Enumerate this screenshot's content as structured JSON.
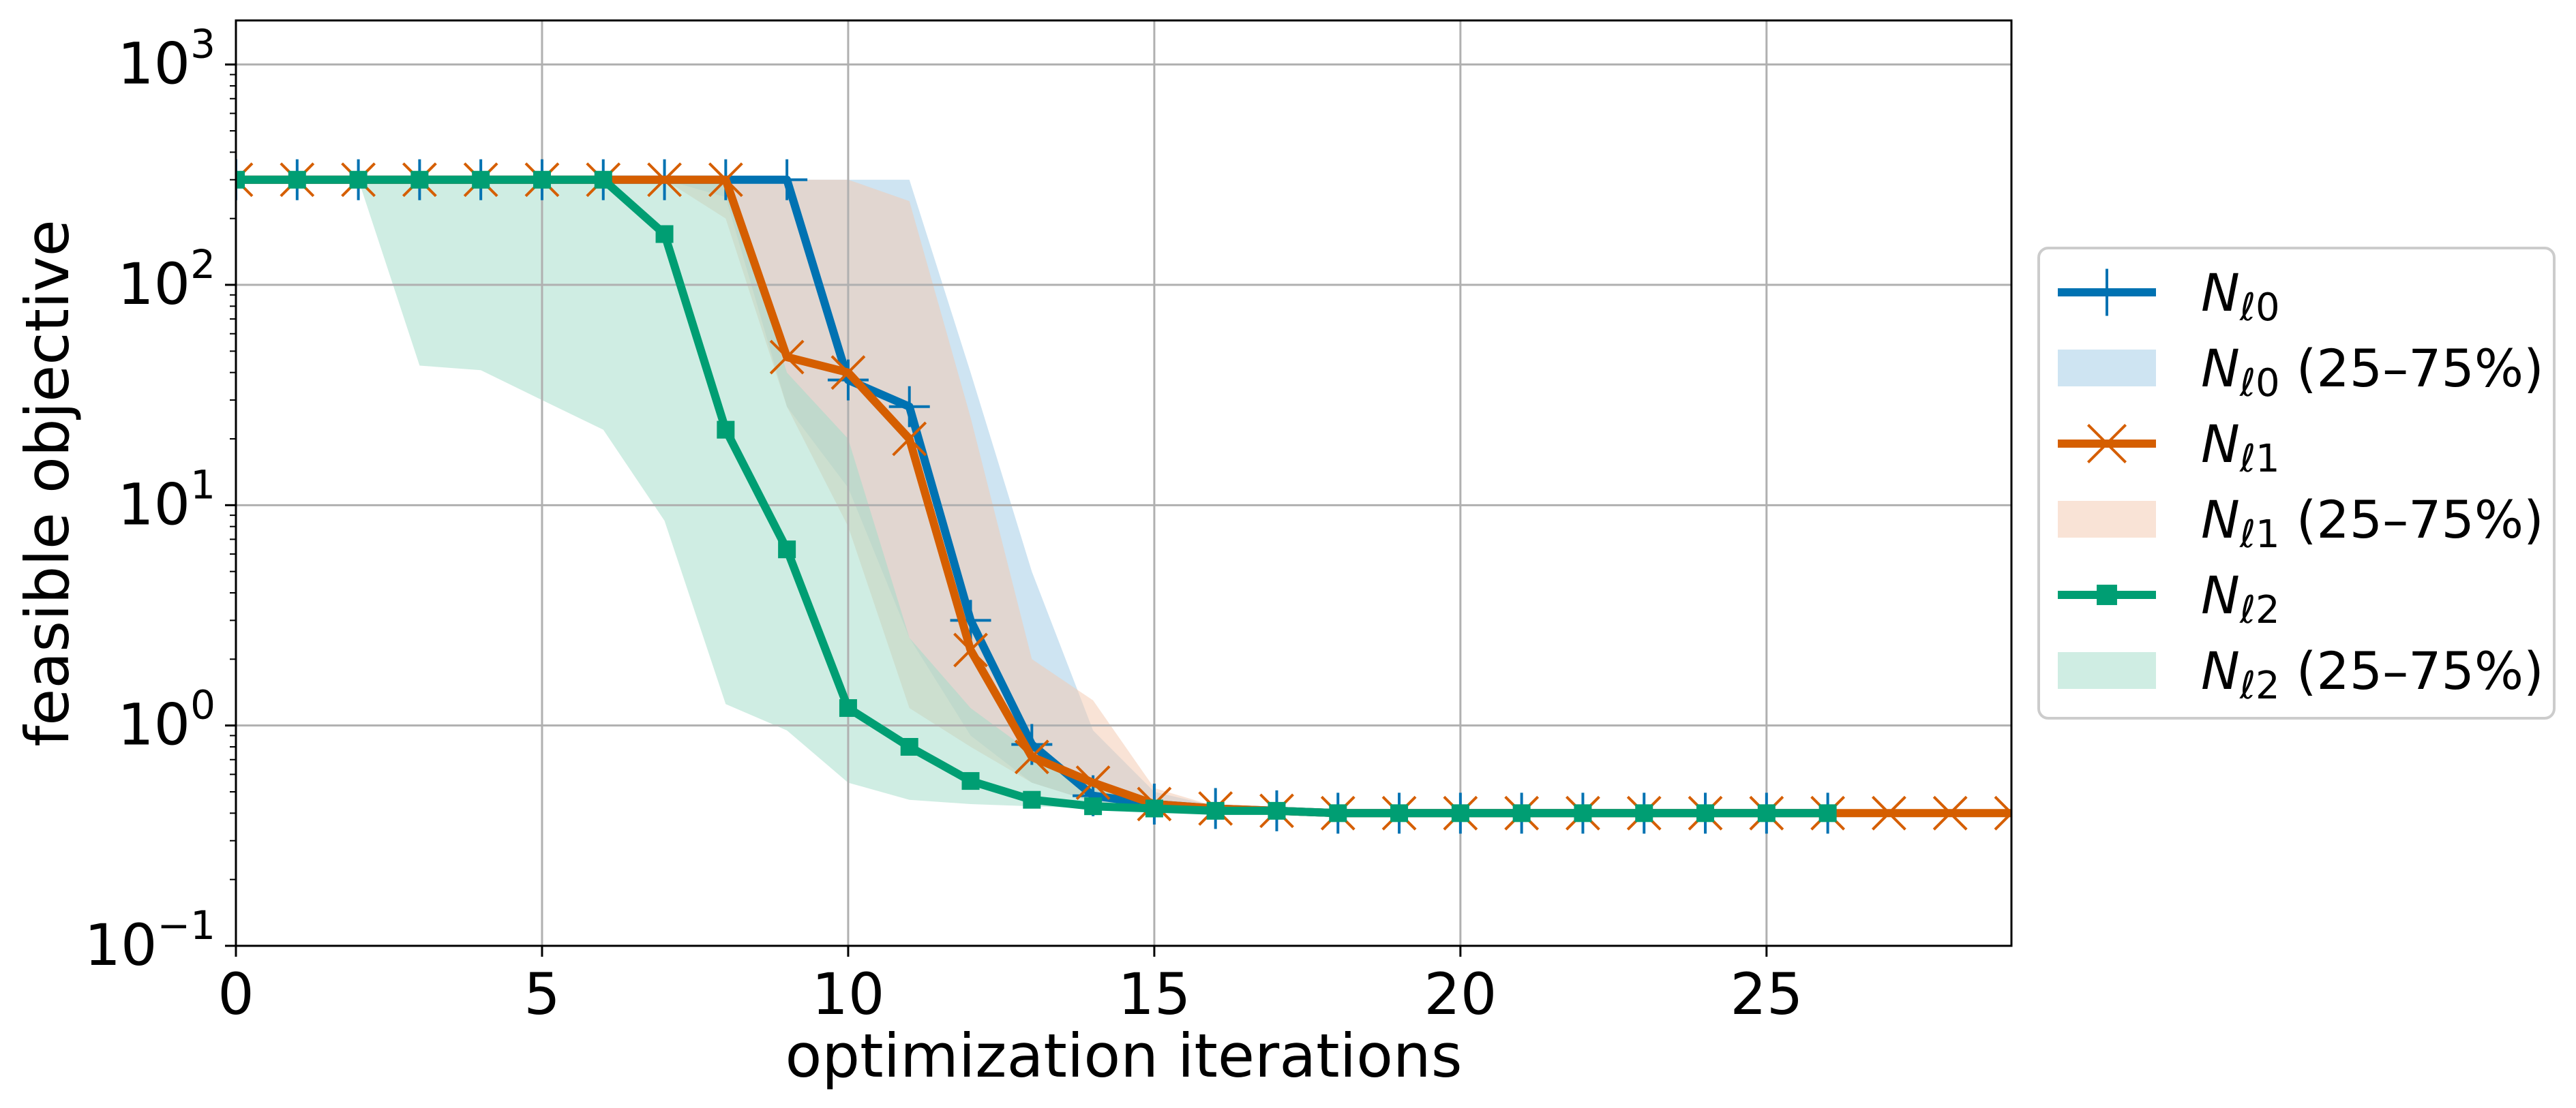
{
  "chart_data": {
    "type": "line",
    "xlabel": "optimization iterations",
    "ylabel": "feasible objective",
    "xlim": [
      0,
      29
    ],
    "ylim": [
      0.1,
      1585
    ],
    "yscale": "log",
    "grid": true,
    "legend_position": "center-right-outside",
    "x_ticks": [
      0,
      5,
      10,
      15,
      20,
      25
    ],
    "x_tick_labels": [
      "0",
      "5",
      "10",
      "15",
      "20",
      "25"
    ],
    "y_ticks": [
      {
        "value": 1000,
        "base": "10",
        "exp": "3"
      },
      {
        "value": 100,
        "base": "10",
        "exp": "2"
      },
      {
        "value": 10,
        "base": "10",
        "exp": "1"
      },
      {
        "value": 1,
        "base": "10",
        "exp": "0"
      },
      {
        "value": 0.1,
        "base": "10",
        "exp": "−1"
      }
    ],
    "series": [
      {
        "name_main": "N",
        "name_sub": "ℓ0",
        "band_suffix": " (25–75%)",
        "color": "#0072B2",
        "band_color": "#9ECAE5",
        "marker": "plus",
        "x": [
          0,
          1,
          2,
          3,
          4,
          5,
          6,
          7,
          8,
          9,
          10,
          11,
          12,
          13,
          14,
          15,
          16,
          17,
          18,
          19,
          20,
          21,
          22,
          23,
          24,
          25,
          26
        ],
        "values": [
          300,
          300,
          300,
          300,
          300,
          300,
          300,
          300,
          300,
          300,
          37,
          28,
          3.0,
          0.82,
          0.48,
          0.44,
          0.42,
          0.41,
          0.4,
          0.4,
          0.4,
          0.4,
          0.4,
          0.4,
          0.4,
          0.4,
          0.4
        ],
        "q25": [
          300,
          300,
          300,
          300,
          300,
          300,
          300,
          300,
          250,
          28,
          12,
          2.5,
          0.9,
          0.55,
          0.45,
          0.43,
          0.42,
          0.41,
          0.4,
          0.4,
          0.4,
          0.4,
          0.4,
          0.4,
          0.4,
          0.4,
          0.4
        ],
        "q75": [
          300,
          300,
          300,
          300,
          300,
          300,
          300,
          300,
          300,
          300,
          300,
          300,
          40,
          5.0,
          0.95,
          0.5,
          0.43,
          0.41,
          0.4,
          0.4,
          0.4,
          0.4,
          0.4,
          0.4,
          0.4,
          0.4,
          0.4
        ]
      },
      {
        "name_main": "N",
        "name_sub": "ℓ1",
        "band_suffix": " (25–75%)",
        "color": "#D55E00",
        "band_color": "#F4C7AE",
        "marker": "x",
        "x": [
          0,
          1,
          2,
          3,
          4,
          5,
          6,
          7,
          8,
          9,
          10,
          11,
          12,
          13,
          14,
          15,
          16,
          17,
          18,
          19,
          20,
          21,
          22,
          23,
          24,
          25,
          26,
          27,
          28,
          29
        ],
        "values": [
          300,
          300,
          300,
          300,
          300,
          300,
          300,
          300,
          300,
          47,
          40,
          20,
          2.2,
          0.72,
          0.55,
          0.44,
          0.42,
          0.41,
          0.4,
          0.4,
          0.4,
          0.4,
          0.4,
          0.4,
          0.4,
          0.4,
          0.4,
          0.4,
          0.4,
          0.4
        ],
        "q25": [
          300,
          300,
          300,
          300,
          300,
          300,
          300,
          300,
          200,
          28,
          8,
          1.2,
          0.8,
          0.55,
          0.45,
          0.43,
          0.42,
          0.41,
          0.4,
          0.4,
          0.4,
          0.4,
          0.4,
          0.4,
          0.4,
          0.4,
          0.4,
          0.4,
          0.4,
          0.4
        ],
        "q75": [
          300,
          300,
          300,
          300,
          300,
          300,
          300,
          300,
          300,
          300,
          300,
          240,
          25,
          2.0,
          1.3,
          0.52,
          0.43,
          0.41,
          0.4,
          0.4,
          0.4,
          0.4,
          0.4,
          0.4,
          0.4,
          0.4,
          0.4,
          0.4,
          0.4,
          0.4
        ]
      },
      {
        "name_main": "N",
        "name_sub": "ℓ2",
        "band_suffix": " (25–75%)",
        "color": "#009E73",
        "band_color": "#9FDCC7",
        "marker": "square",
        "x": [
          0,
          1,
          2,
          3,
          4,
          5,
          6,
          7,
          8,
          9,
          10,
          11,
          12,
          13,
          14,
          15,
          16,
          17,
          18,
          19,
          20,
          21,
          22,
          23,
          24,
          25,
          26
        ],
        "values": [
          300,
          300,
          300,
          300,
          300,
          300,
          300,
          170,
          22,
          6.3,
          1.2,
          0.8,
          0.56,
          0.46,
          0.43,
          0.42,
          0.41,
          0.41,
          0.4,
          0.4,
          0.4,
          0.4,
          0.4,
          0.4,
          0.4,
          0.4,
          0.4
        ],
        "q25": [
          300,
          300,
          300,
          43,
          41,
          30,
          22,
          8.5,
          1.25,
          0.95,
          0.55,
          0.46,
          0.44,
          0.43,
          0.42,
          0.41,
          0.41,
          0.4,
          0.4,
          0.4,
          0.4,
          0.4,
          0.4,
          0.4,
          0.4,
          0.4,
          0.4
        ],
        "q75": [
          300,
          300,
          300,
          300,
          300,
          300,
          300,
          300,
          300,
          40,
          20,
          2.5,
          1.2,
          0.75,
          0.55,
          0.44,
          0.42,
          0.41,
          0.4,
          0.4,
          0.4,
          0.4,
          0.4,
          0.4,
          0.4,
          0.4,
          0.4
        ]
      }
    ]
  }
}
